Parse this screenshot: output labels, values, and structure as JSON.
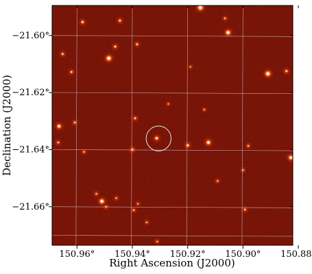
{
  "chart_data": {
    "type": "sky-image",
    "colormap": "heat (dark red to white)",
    "xlabel": "Right Ascension (J2000)",
    "ylabel": "Declination (J2000)",
    "xlim": [
      150.969,
      150.882
    ],
    "ylim": [
      -21.6735,
      -21.5895
    ],
    "grid": true,
    "grid_color": "#c8a8a8",
    "x_ticks": [
      {
        "value": 150.96,
        "label": "150.96°"
      },
      {
        "value": 150.94,
        "label": "150.94°"
      },
      {
        "value": 150.92,
        "label": "150.92°"
      },
      {
        "value": 150.9,
        "label": "150.90°"
      },
      {
        "value": 150.88,
        "label": "150.88°"
      }
    ],
    "y_ticks": [
      {
        "value": -21.6,
        "label": "−21.60°"
      },
      {
        "value": -21.62,
        "label": "−21.62°"
      },
      {
        "value": -21.64,
        "label": "−21.64°"
      },
      {
        "value": -21.66,
        "label": "−21.66°"
      }
    ],
    "grid_ra": [
      150.96,
      150.94,
      150.92,
      150.9,
      150.88
    ],
    "grid_dec": [
      -21.6,
      -21.62,
      -21.64,
      -21.66
    ],
    "target_circle": {
      "ra": 150.9305,
      "dec": -21.6361,
      "radius_deg": 0.0045,
      "color": "#e8e8e8"
    },
    "sources": [
      {
        "ra": 150.9154,
        "dec": -21.5902,
        "flux": 1.0
      },
      {
        "ra": 150.9445,
        "dec": -21.5948,
        "flux": 0.55
      },
      {
        "ra": 150.958,
        "dec": -21.5953,
        "flux": 0.6
      },
      {
        "ra": 150.9065,
        "dec": -21.594,
        "flux": 0.4
      },
      {
        "ra": 150.9383,
        "dec": -21.6031,
        "flux": 0.5
      },
      {
        "ra": 150.9054,
        "dec": -21.599,
        "flux": 0.9
      },
      {
        "ra": 150.9462,
        "dec": -21.6039,
        "flux": 0.55
      },
      {
        "ra": 150.9652,
        "dec": -21.6065,
        "flux": 0.5
      },
      {
        "ra": 150.9485,
        "dec": -21.608,
        "flux": 0.95
      },
      {
        "ra": 150.962,
        "dec": -21.6128,
        "flux": 0.5
      },
      {
        "ra": 150.891,
        "dec": -21.6134,
        "flux": 0.95
      },
      {
        "ra": 150.8843,
        "dec": -21.6125,
        "flux": 0.55
      },
      {
        "ra": 150.939,
        "dec": -21.629,
        "flux": 0.5
      },
      {
        "ra": 150.9665,
        "dec": -21.6318,
        "flux": 0.8
      },
      {
        "ra": 150.9608,
        "dec": -21.6305,
        "flux": 0.45
      },
      {
        "ra": 150.9312,
        "dec": -21.636,
        "flux": 0.7
      },
      {
        "ra": 150.9125,
        "dec": -21.6375,
        "flux": 0.85
      },
      {
        "ra": 150.92,
        "dec": -21.6385,
        "flux": 0.65
      },
      {
        "ra": 150.94,
        "dec": -21.64,
        "flux": 0.6
      },
      {
        "ra": 150.9668,
        "dec": -21.6375,
        "flux": 0.45
      },
      {
        "ra": 150.9575,
        "dec": -21.6408,
        "flux": 0.4
      },
      {
        "ra": 150.8981,
        "dec": -21.6387,
        "flux": 0.4
      },
      {
        "ra": 150.8827,
        "dec": -21.6428,
        "flux": 0.85
      },
      {
        "ra": 150.9,
        "dec": -21.6472,
        "flux": 0.35
      },
      {
        "ra": 150.953,
        "dec": -21.6555,
        "flux": 0.4
      },
      {
        "ra": 150.9458,
        "dec": -21.657,
        "flux": 0.35
      },
      {
        "ra": 150.9495,
        "dec": -21.66,
        "flux": 0.45
      },
      {
        "ra": 150.9092,
        "dec": -21.651,
        "flux": 0.35
      },
      {
        "ra": 150.938,
        "dec": -21.659,
        "flux": 0.3
      },
      {
        "ra": 150.951,
        "dec": -21.6581,
        "flux": 0.9
      },
      {
        "ra": 150.9395,
        "dec": -21.6612,
        "flux": 0.4
      },
      {
        "ra": 150.8993,
        "dec": -21.661,
        "flux": 0.45
      },
      {
        "ra": 150.9348,
        "dec": -21.6655,
        "flux": 0.35
      },
      {
        "ra": 150.931,
        "dec": -21.6722,
        "flux": 0.35
      },
      {
        "ra": 150.914,
        "dec": -21.626,
        "flux": 0.3
      },
      {
        "ra": 150.919,
        "dec": -21.611,
        "flux": 0.25
      },
      {
        "ra": 150.927,
        "dec": -21.624,
        "flux": 0.25
      }
    ]
  }
}
